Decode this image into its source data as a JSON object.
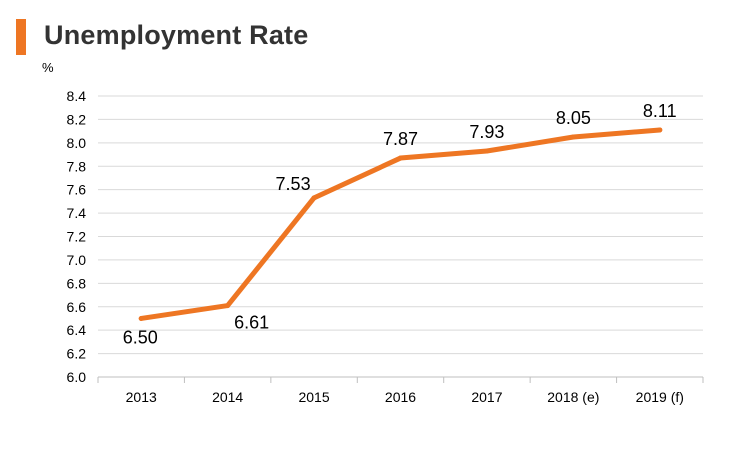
{
  "title": "Unemployment Rate",
  "colors": {
    "accent": "#ee7623",
    "line": "#ee7623",
    "grid": "#d9d9d9",
    "axis": "#bfbfbf",
    "title_text": "#333333"
  },
  "chart_data": {
    "type": "line",
    "title": "Unemployment Rate",
    "ylabel": "%",
    "xlabel": "",
    "categories": [
      "2013",
      "2014",
      "2015",
      "2016",
      "2017",
      "2018 (e)",
      "2019 (f)"
    ],
    "series": [
      {
        "values": [
          6.5,
          6.61,
          7.53,
          7.87,
          7.93,
          8.05,
          8.11
        ],
        "labels": [
          "6.50",
          "6.61",
          "7.53",
          "7.87",
          "7.93",
          "8.05",
          "8.11"
        ]
      }
    ],
    "yticks": [
      "6.0",
      "6.2",
      "6.4",
      "6.6",
      "6.8",
      "7.0",
      "7.2",
      "7.4",
      "7.6",
      "7.8",
      "8.0",
      "8.2",
      "8.4"
    ],
    "ylim": [
      6.0,
      8.4
    ],
    "grid": true,
    "legend": "none"
  }
}
